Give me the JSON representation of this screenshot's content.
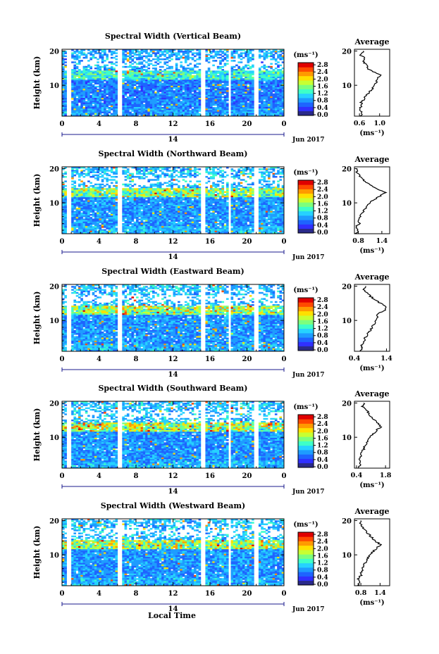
{
  "figure": {
    "xlabel_bottom": "Local Time"
  },
  "shared": {
    "main_xticks": [
      "0",
      "4",
      "8",
      "12",
      "16",
      "20",
      "0"
    ],
    "main_yticks": [
      "10",
      "20"
    ],
    "main_ylabel": "Height (km)",
    "date_center": "14",
    "date_right": "Jun 2017",
    "colorbar_unit": "(ms⁻¹)",
    "colorbar_ticks": [
      "0.0",
      "0.4",
      "0.8",
      "1.2",
      "1.6",
      "2.0",
      "2.4",
      "2.8"
    ],
    "avg_title": "Average",
    "avg_xlabel": "(ms⁻¹)",
    "avg_yticks": [
      "10",
      "20"
    ]
  },
  "colors": {
    "map": [
      "#2a2a8a",
      "#3030ff",
      "#1e64ff",
      "#1e9cff",
      "#26d2ff",
      "#3effc8",
      "#7dff7d",
      "#c8ff32",
      "#ffe000",
      "#ff9a00",
      "#ff4a00",
      "#e00000"
    ],
    "missing": "#ffffff",
    "gap": "#ffffff"
  },
  "chart_data": [
    {
      "type": "heatmap",
      "title": "Spectral Width (Vertical Beam)",
      "avg_xticks": [
        "0.6",
        "1.0"
      ],
      "avg_xlim": [
        0.5,
        1.2
      ],
      "avg_profile": [
        [
          1,
          0.62
        ],
        [
          2,
          0.66
        ],
        [
          3,
          0.6
        ],
        [
          4,
          0.65
        ],
        [
          5,
          0.63
        ],
        [
          6,
          0.7
        ],
        [
          7,
          0.72
        ],
        [
          8,
          0.8
        ],
        [
          9,
          0.86
        ],
        [
          10,
          0.9
        ],
        [
          11,
          0.93
        ],
        [
          12,
          0.95
        ],
        [
          13,
          1.05
        ],
        [
          14,
          0.85
        ],
        [
          15,
          0.75
        ],
        [
          16,
          0.74
        ],
        [
          17,
          0.66
        ],
        [
          18,
          0.7
        ],
        [
          19,
          0.6
        ],
        [
          20,
          0.68
        ]
      ],
      "seed": 11,
      "upper_level": 1.0,
      "base": 0.45
    },
    {
      "type": "heatmap",
      "title": "Spectral Width (Northward Beam)",
      "avg_xticks": [
        "0.8",
        "1.4"
      ],
      "avg_xlim": [
        0.7,
        1.6
      ],
      "avg_profile": [
        [
          1,
          0.72
        ],
        [
          2,
          0.8
        ],
        [
          3,
          0.74
        ],
        [
          4,
          0.82
        ],
        [
          5,
          0.78
        ],
        [
          6,
          0.84
        ],
        [
          7,
          0.9
        ],
        [
          8,
          0.96
        ],
        [
          9,
          1.02
        ],
        [
          10,
          1.1
        ],
        [
          11,
          1.2
        ],
        [
          12,
          1.35
        ],
        [
          13,
          1.5
        ],
        [
          14,
          1.3
        ],
        [
          15,
          1.15
        ],
        [
          16,
          1.0
        ],
        [
          17,
          0.9
        ],
        [
          18,
          0.82
        ],
        [
          19,
          0.76
        ],
        [
          20,
          0.74
        ]
      ],
      "seed": 23,
      "upper_level": 1.5,
      "base": 0.55
    },
    {
      "type": "heatmap",
      "title": "Spectral Width (Eastward Beam)",
      "avg_xticks": [
        "0.4",
        "1.4"
      ],
      "avg_xlim": [
        0.4,
        1.5
      ],
      "avg_profile": [
        [
          1,
          0.6
        ],
        [
          2,
          0.66
        ],
        [
          3,
          0.62
        ],
        [
          4,
          0.7
        ],
        [
          5,
          0.74
        ],
        [
          6,
          0.8
        ],
        [
          7,
          0.88
        ],
        [
          8,
          0.96
        ],
        [
          9,
          1.02
        ],
        [
          10,
          1.06
        ],
        [
          11,
          1.1
        ],
        [
          12,
          1.15
        ],
        [
          13,
          1.35
        ],
        [
          14,
          1.42
        ],
        [
          15,
          1.2
        ],
        [
          16,
          1.05
        ],
        [
          17,
          0.9
        ],
        [
          18,
          0.8
        ],
        [
          19,
          0.7
        ],
        [
          20,
          0.75
        ]
      ],
      "seed": 37,
      "upper_level": 1.6,
      "base": 0.55
    },
    {
      "type": "heatmap",
      "title": "Spectral Width (Southward Beam)",
      "avg_xticks": [
        "0.4",
        "1.8"
      ],
      "avg_xlim": [
        0.3,
        2.0
      ],
      "avg_profile": [
        [
          1,
          0.5
        ],
        [
          2,
          0.58
        ],
        [
          3,
          0.52
        ],
        [
          4,
          0.6
        ],
        [
          5,
          0.62
        ],
        [
          6,
          0.7
        ],
        [
          7,
          0.78
        ],
        [
          8,
          0.86
        ],
        [
          9,
          0.95
        ],
        [
          10,
          1.05
        ],
        [
          11,
          1.2
        ],
        [
          12,
          1.35
        ],
        [
          13,
          1.55
        ],
        [
          14,
          1.45
        ],
        [
          15,
          1.3
        ],
        [
          16,
          1.1
        ],
        [
          17,
          1.0
        ],
        [
          18,
          0.85
        ],
        [
          19,
          0.7
        ],
        [
          20,
          0.8
        ]
      ],
      "seed": 51,
      "upper_level": 1.7,
      "base": 0.55
    },
    {
      "type": "heatmap",
      "title": "Spectral Width (Westward Beam)",
      "avg_xticks": [
        "0.8",
        "1.4"
      ],
      "avg_xlim": [
        0.6,
        1.7
      ],
      "avg_profile": [
        [
          1,
          0.7
        ],
        [
          2,
          0.78
        ],
        [
          3,
          0.72
        ],
        [
          4,
          0.8
        ],
        [
          5,
          0.82
        ],
        [
          6,
          0.86
        ],
        [
          7,
          0.9
        ],
        [
          8,
          0.96
        ],
        [
          9,
          1.02
        ],
        [
          10,
          1.1
        ],
        [
          11,
          1.18
        ],
        [
          12,
          1.3
        ],
        [
          13,
          1.42
        ],
        [
          14,
          1.25
        ],
        [
          15,
          1.15
        ],
        [
          16,
          1.05
        ],
        [
          17,
          0.95
        ],
        [
          18,
          0.85
        ],
        [
          19,
          0.78
        ],
        [
          20,
          0.8
        ]
      ],
      "seed": 67,
      "upper_level": 1.6,
      "base": 0.55
    }
  ]
}
